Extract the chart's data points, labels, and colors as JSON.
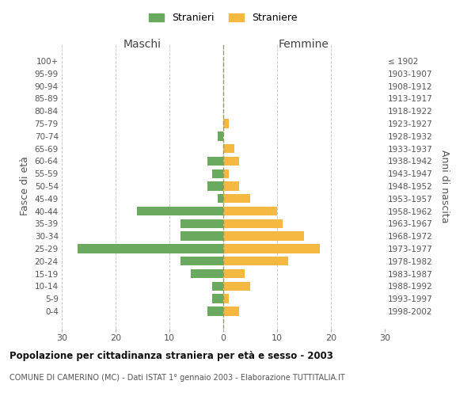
{
  "age_groups": [
    "100+",
    "95-99",
    "90-94",
    "85-89",
    "80-84",
    "75-79",
    "70-74",
    "65-69",
    "60-64",
    "55-59",
    "50-54",
    "45-49",
    "40-44",
    "35-39",
    "30-34",
    "25-29",
    "20-24",
    "15-19",
    "10-14",
    "5-9",
    "0-4"
  ],
  "birth_years": [
    "≤ 1902",
    "1903-1907",
    "1908-1912",
    "1913-1917",
    "1918-1922",
    "1923-1927",
    "1928-1932",
    "1933-1937",
    "1938-1942",
    "1943-1947",
    "1948-1952",
    "1953-1957",
    "1958-1962",
    "1963-1967",
    "1968-1972",
    "1973-1977",
    "1978-1982",
    "1983-1987",
    "1988-1992",
    "1993-1997",
    "1998-2002"
  ],
  "maschi": [
    0,
    0,
    0,
    0,
    0,
    0,
    1,
    0,
    3,
    2,
    3,
    1,
    16,
    8,
    8,
    27,
    8,
    6,
    2,
    2,
    3
  ],
  "femmine": [
    0,
    0,
    0,
    0,
    0,
    1,
    0,
    2,
    3,
    1,
    3,
    5,
    10,
    11,
    15,
    18,
    12,
    4,
    5,
    1,
    3
  ],
  "color_maschi": "#6aaa5e",
  "color_femmine": "#f5b942",
  "title": "Popolazione per cittadinanza straniera per età e sesso - 2003",
  "subtitle": "COMUNE DI CAMERINO (MC) - Dati ISTAT 1° gennaio 2003 - Elaborazione TUTTITALIA.IT",
  "header_left": "Maschi",
  "header_right": "Femmine",
  "ylabel_left": "Fasce di età",
  "ylabel_right": "Anni di nascita",
  "legend_maschi": "Stranieri",
  "legend_femmine": "Straniere",
  "xlim": 30,
  "background_color": "#ffffff",
  "grid_color": "#cccccc"
}
